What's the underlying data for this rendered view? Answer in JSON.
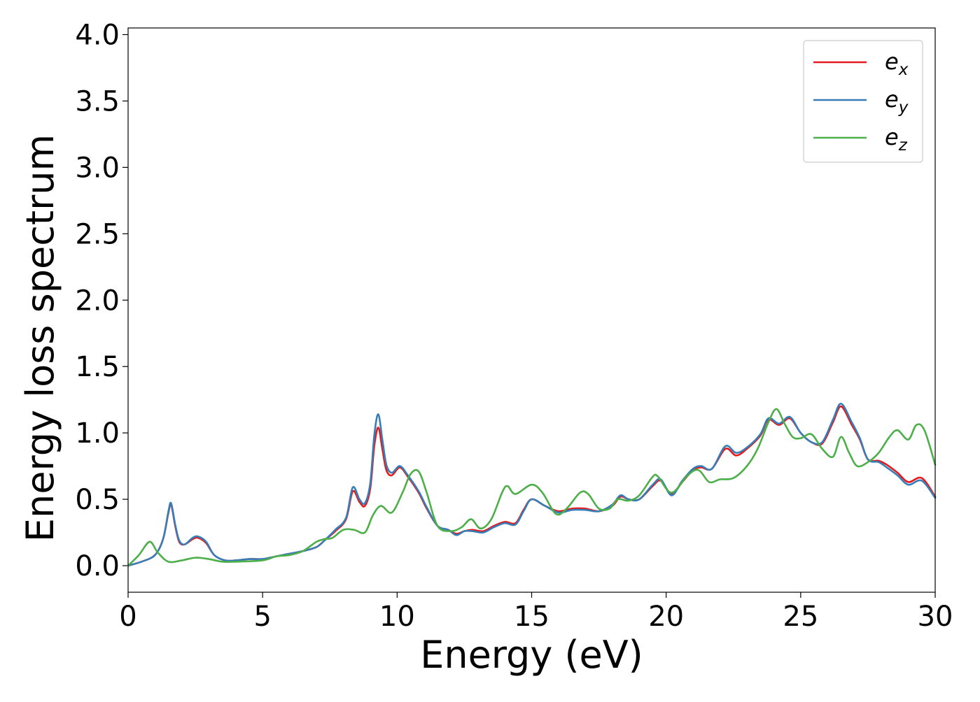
{
  "chart_data": {
    "type": "line",
    "title": "",
    "xlabel": "Energy (eV)",
    "ylabel": "Energy loss spectrum",
    "xlim": [
      0,
      30
    ],
    "ylim": [
      -0.2,
      4.05
    ],
    "xticks": [
      "0",
      "5",
      "10",
      "15",
      "20",
      "25",
      "30"
    ],
    "yticks": [
      "0.0",
      "0.5",
      "1.0",
      "1.5",
      "2.0",
      "2.5",
      "3.0",
      "3.5",
      "4.0"
    ],
    "grid": false,
    "legend_position": "top-right",
    "series": [
      {
        "name": "e_x",
        "legend_base": "e",
        "legend_sub": "x",
        "color": "#e41a1c",
        "points": [
          [
            0,
            0.0
          ],
          [
            0.5,
            0.03
          ],
          [
            1.0,
            0.08
          ],
          [
            1.3,
            0.2
          ],
          [
            1.5,
            0.4
          ],
          [
            1.6,
            0.46
          ],
          [
            1.75,
            0.3
          ],
          [
            1.9,
            0.18
          ],
          [
            2.1,
            0.16
          ],
          [
            2.4,
            0.2
          ],
          [
            2.6,
            0.21
          ],
          [
            2.9,
            0.17
          ],
          [
            3.2,
            0.08
          ],
          [
            3.6,
            0.04
          ],
          [
            4.0,
            0.04
          ],
          [
            4.5,
            0.05
          ],
          [
            5.0,
            0.05
          ],
          [
            5.5,
            0.07
          ],
          [
            6.0,
            0.09
          ],
          [
            6.5,
            0.11
          ],
          [
            7.0,
            0.14
          ],
          [
            7.3,
            0.19
          ],
          [
            7.7,
            0.26
          ],
          [
            8.1,
            0.35
          ],
          [
            8.35,
            0.56
          ],
          [
            8.6,
            0.48
          ],
          [
            8.8,
            0.45
          ],
          [
            9.0,
            0.58
          ],
          [
            9.15,
            0.9
          ],
          [
            9.3,
            1.04
          ],
          [
            9.45,
            0.88
          ],
          [
            9.6,
            0.72
          ],
          [
            9.8,
            0.68
          ],
          [
            10.1,
            0.74
          ],
          [
            10.4,
            0.67
          ],
          [
            10.8,
            0.55
          ],
          [
            11.1,
            0.43
          ],
          [
            11.5,
            0.3
          ],
          [
            11.9,
            0.27
          ],
          [
            12.2,
            0.24
          ],
          [
            12.5,
            0.26
          ],
          [
            12.8,
            0.27
          ],
          [
            13.2,
            0.26
          ],
          [
            13.6,
            0.3
          ],
          [
            14.0,
            0.33
          ],
          [
            14.4,
            0.32
          ],
          [
            14.7,
            0.42
          ],
          [
            15.0,
            0.5
          ],
          [
            15.5,
            0.45
          ],
          [
            16.0,
            0.41
          ],
          [
            16.5,
            0.43
          ],
          [
            17.0,
            0.43
          ],
          [
            17.5,
            0.41
          ],
          [
            18.0,
            0.45
          ],
          [
            18.3,
            0.52
          ],
          [
            18.6,
            0.5
          ],
          [
            19.0,
            0.5
          ],
          [
            19.5,
            0.6
          ],
          [
            19.8,
            0.64
          ],
          [
            20.2,
            0.54
          ],
          [
            20.6,
            0.63
          ],
          [
            21.0,
            0.72
          ],
          [
            21.3,
            0.74
          ],
          [
            21.7,
            0.73
          ],
          [
            22.2,
            0.88
          ],
          [
            22.6,
            0.83
          ],
          [
            23.0,
            0.88
          ],
          [
            23.5,
            0.98
          ],
          [
            23.8,
            1.1
          ],
          [
            24.2,
            1.06
          ],
          [
            24.6,
            1.11
          ],
          [
            25.0,
            1.0
          ],
          [
            25.4,
            0.93
          ],
          [
            25.8,
            0.92
          ],
          [
            26.2,
            1.08
          ],
          [
            26.5,
            1.2
          ],
          [
            26.9,
            1.06
          ],
          [
            27.2,
            0.95
          ],
          [
            27.5,
            0.8
          ],
          [
            27.9,
            0.79
          ],
          [
            28.2,
            0.76
          ],
          [
            28.6,
            0.7
          ],
          [
            29.0,
            0.63
          ],
          [
            29.5,
            0.66
          ],
          [
            30.0,
            0.52
          ]
        ]
      },
      {
        "name": "e_y",
        "legend_base": "e",
        "legend_sub": "y",
        "color": "#377eb8",
        "points": [
          [
            0,
            0.0
          ],
          [
            0.5,
            0.03
          ],
          [
            1.0,
            0.08
          ],
          [
            1.3,
            0.2
          ],
          [
            1.5,
            0.41
          ],
          [
            1.6,
            0.47
          ],
          [
            1.75,
            0.31
          ],
          [
            1.9,
            0.19
          ],
          [
            2.1,
            0.16
          ],
          [
            2.4,
            0.21
          ],
          [
            2.6,
            0.22
          ],
          [
            2.9,
            0.18
          ],
          [
            3.2,
            0.08
          ],
          [
            3.6,
            0.04
          ],
          [
            4.0,
            0.04
          ],
          [
            4.5,
            0.05
          ],
          [
            5.0,
            0.05
          ],
          [
            5.5,
            0.07
          ],
          [
            6.0,
            0.09
          ],
          [
            6.5,
            0.11
          ],
          [
            7.0,
            0.14
          ],
          [
            7.3,
            0.19
          ],
          [
            7.7,
            0.27
          ],
          [
            8.1,
            0.36
          ],
          [
            8.35,
            0.59
          ],
          [
            8.6,
            0.5
          ],
          [
            8.8,
            0.47
          ],
          [
            9.0,
            0.62
          ],
          [
            9.15,
            0.98
          ],
          [
            9.3,
            1.14
          ],
          [
            9.45,
            0.95
          ],
          [
            9.6,
            0.76
          ],
          [
            9.8,
            0.7
          ],
          [
            10.1,
            0.75
          ],
          [
            10.4,
            0.68
          ],
          [
            10.8,
            0.56
          ],
          [
            11.1,
            0.44
          ],
          [
            11.5,
            0.3
          ],
          [
            11.9,
            0.27
          ],
          [
            12.2,
            0.23
          ],
          [
            12.5,
            0.26
          ],
          [
            12.8,
            0.26
          ],
          [
            13.2,
            0.25
          ],
          [
            13.6,
            0.29
          ],
          [
            14.0,
            0.32
          ],
          [
            14.4,
            0.31
          ],
          [
            14.7,
            0.41
          ],
          [
            15.0,
            0.5
          ],
          [
            15.5,
            0.45
          ],
          [
            16.0,
            0.4
          ],
          [
            16.5,
            0.42
          ],
          [
            17.0,
            0.42
          ],
          [
            17.5,
            0.41
          ],
          [
            18.0,
            0.46
          ],
          [
            18.3,
            0.53
          ],
          [
            18.6,
            0.5
          ],
          [
            19.0,
            0.5
          ],
          [
            19.5,
            0.61
          ],
          [
            19.8,
            0.65
          ],
          [
            20.2,
            0.53
          ],
          [
            20.6,
            0.64
          ],
          [
            21.0,
            0.73
          ],
          [
            21.3,
            0.75
          ],
          [
            21.7,
            0.73
          ],
          [
            22.2,
            0.9
          ],
          [
            22.6,
            0.85
          ],
          [
            23.0,
            0.89
          ],
          [
            23.5,
            0.99
          ],
          [
            23.8,
            1.11
          ],
          [
            24.2,
            1.07
          ],
          [
            24.6,
            1.12
          ],
          [
            25.0,
            1.0
          ],
          [
            25.4,
            0.93
          ],
          [
            25.8,
            0.93
          ],
          [
            26.2,
            1.1
          ],
          [
            26.5,
            1.22
          ],
          [
            26.9,
            1.08
          ],
          [
            27.2,
            0.96
          ],
          [
            27.5,
            0.8
          ],
          [
            27.9,
            0.78
          ],
          [
            28.2,
            0.74
          ],
          [
            28.6,
            0.68
          ],
          [
            29.0,
            0.61
          ],
          [
            29.5,
            0.64
          ],
          [
            30.0,
            0.51
          ]
        ]
      },
      {
        "name": "e_z",
        "legend_base": "e",
        "legend_sub": "z",
        "color": "#4daf4a",
        "points": [
          [
            0,
            0.0
          ],
          [
            0.4,
            0.08
          ],
          [
            0.8,
            0.18
          ],
          [
            1.1,
            0.1
          ],
          [
            1.5,
            0.03
          ],
          [
            2.0,
            0.04
          ],
          [
            2.5,
            0.06
          ],
          [
            3.0,
            0.05
          ],
          [
            3.5,
            0.03
          ],
          [
            4.0,
            0.03
          ],
          [
            5.0,
            0.04
          ],
          [
            5.5,
            0.07
          ],
          [
            6.0,
            0.08
          ],
          [
            6.5,
            0.11
          ],
          [
            7.0,
            0.18
          ],
          [
            7.3,
            0.2
          ],
          [
            7.6,
            0.21
          ],
          [
            8.0,
            0.27
          ],
          [
            8.4,
            0.27
          ],
          [
            8.8,
            0.25
          ],
          [
            9.1,
            0.38
          ],
          [
            9.4,
            0.45
          ],
          [
            9.8,
            0.4
          ],
          [
            10.2,
            0.55
          ],
          [
            10.5,
            0.69
          ],
          [
            10.8,
            0.71
          ],
          [
            11.1,
            0.55
          ],
          [
            11.5,
            0.3
          ],
          [
            12.0,
            0.26
          ],
          [
            12.4,
            0.29
          ],
          [
            12.75,
            0.35
          ],
          [
            13.1,
            0.28
          ],
          [
            13.5,
            0.35
          ],
          [
            13.9,
            0.55
          ],
          [
            14.1,
            0.6
          ],
          [
            14.4,
            0.54
          ],
          [
            15.0,
            0.61
          ],
          [
            15.4,
            0.55
          ],
          [
            15.9,
            0.39
          ],
          [
            16.3,
            0.43
          ],
          [
            16.8,
            0.55
          ],
          [
            17.1,
            0.54
          ],
          [
            17.5,
            0.43
          ],
          [
            17.9,
            0.43
          ],
          [
            18.2,
            0.5
          ],
          [
            18.6,
            0.49
          ],
          [
            19.0,
            0.53
          ],
          [
            19.5,
            0.67
          ],
          [
            19.7,
            0.67
          ],
          [
            20.2,
            0.55
          ],
          [
            20.8,
            0.68
          ],
          [
            21.2,
            0.72
          ],
          [
            21.6,
            0.63
          ],
          [
            22.0,
            0.65
          ],
          [
            22.5,
            0.66
          ],
          [
            23.0,
            0.75
          ],
          [
            23.4,
            0.88
          ],
          [
            23.8,
            1.08
          ],
          [
            24.1,
            1.18
          ],
          [
            24.4,
            1.07
          ],
          [
            24.7,
            0.97
          ],
          [
            25.0,
            0.96
          ],
          [
            25.4,
            0.99
          ],
          [
            25.8,
            0.88
          ],
          [
            26.2,
            0.82
          ],
          [
            26.5,
            0.97
          ],
          [
            26.8,
            0.85
          ],
          [
            27.1,
            0.75
          ],
          [
            27.5,
            0.78
          ],
          [
            27.9,
            0.85
          ],
          [
            28.3,
            0.97
          ],
          [
            28.6,
            1.02
          ],
          [
            29.0,
            0.95
          ],
          [
            29.3,
            1.06
          ],
          [
            29.6,
            1.02
          ],
          [
            30.0,
            0.76
          ]
        ]
      }
    ]
  }
}
